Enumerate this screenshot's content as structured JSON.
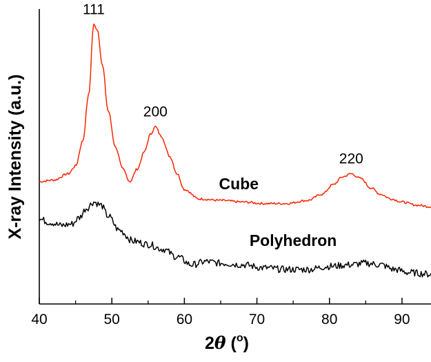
{
  "chart_data": {
    "type": "line",
    "title": "",
    "xlabel": {
      "prefix": "2",
      "theta": "θ",
      "open": " (",
      "unit": "o",
      "close": ")"
    },
    "ylabel": "X-ray Intensity (a.u.)",
    "xlim": [
      40,
      94
    ],
    "x_ticks": [
      "40",
      "50",
      "60",
      "70",
      "80",
      "90"
    ],
    "y_ticks_shown": false,
    "grid": false,
    "series": [
      {
        "name": "Cube",
        "color": "#ff2200",
        "x": [
          40,
          42,
          44,
          45,
          46,
          46.8,
          47.5,
          48,
          48.7,
          49.5,
          50.5,
          51.5,
          52.5,
          53.5,
          54.5,
          55.3,
          56,
          56.8,
          58,
          59,
          60,
          62,
          65,
          68,
          71,
          74,
          77,
          79,
          80.5,
          81.8,
          83,
          84.3,
          85.7,
          87,
          88.5,
          90,
          92,
          94
        ],
        "y": [
          0.0,
          0.01,
          0.05,
          0.1,
          0.26,
          0.55,
          1.0,
          0.97,
          0.74,
          0.45,
          0.22,
          0.08,
          0.0,
          0.08,
          0.19,
          0.3,
          0.35,
          0.29,
          0.16,
          0.05,
          -0.05,
          -0.11,
          -0.12,
          -0.13,
          -0.14,
          -0.14,
          -0.12,
          -0.08,
          -0.02,
          0.03,
          0.05,
          0.02,
          -0.04,
          -0.08,
          -0.11,
          -0.13,
          -0.15,
          -0.16
        ]
      },
      {
        "name": "Polyhedron",
        "color": "#000000",
        "x": [
          40,
          41.5,
          43,
          44.5,
          45.5,
          46.5,
          47.5,
          48.5,
          49.5,
          51,
          53,
          55,
          57,
          59,
          61,
          63,
          65,
          68,
          71,
          74,
          77,
          80,
          83,
          85,
          87,
          89,
          91,
          94
        ],
        "y": [
          -0.24,
          -0.26,
          -0.28,
          -0.27,
          -0.23,
          -0.17,
          -0.13,
          -0.15,
          -0.22,
          -0.31,
          -0.38,
          -0.4,
          -0.43,
          -0.48,
          -0.53,
          -0.51,
          -0.52,
          -0.53,
          -0.55,
          -0.56,
          -0.56,
          -0.54,
          -0.53,
          -0.52,
          -0.53,
          -0.56,
          -0.58,
          -0.59
        ]
      }
    ],
    "annotations": [
      {
        "text": "111",
        "kind": "peak",
        "x": 47.5,
        "y": 1.0
      },
      {
        "text": "200",
        "kind": "peak",
        "x": 56.0,
        "y": 0.35
      },
      {
        "text": "220",
        "kind": "peak",
        "x": 83.0,
        "y": 0.05
      },
      {
        "text": "Cube",
        "kind": "series",
        "x": 67.5,
        "y": -0.05
      },
      {
        "text": "Polyhedron",
        "kind": "series",
        "x": 75.0,
        "y": -0.41
      }
    ]
  }
}
